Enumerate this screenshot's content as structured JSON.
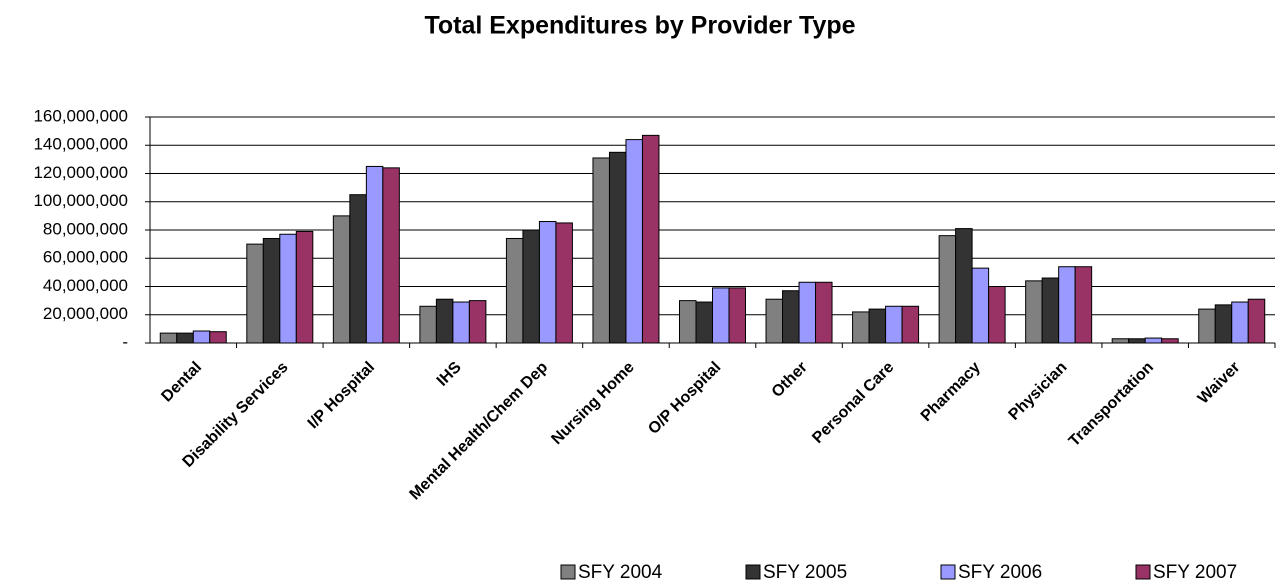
{
  "chart_data": {
    "type": "bar",
    "title": "Total Expenditures by Provider Type",
    "categories": [
      "Dental",
      "Disability Services",
      "I/P Hospital",
      "IHS",
      "Mental Health/Chem Dep",
      "Nursing Home",
      "O/P Hospital",
      "Other",
      "Personal Care",
      "Pharmacy",
      "Physician",
      "Transportation",
      "Waiver"
    ],
    "series": [
      {
        "name": "SFY 2004",
        "color": "#808080",
        "values": [
          7000000,
          70000000,
          90000000,
          26000000,
          74000000,
          131000000,
          30000000,
          31000000,
          22000000,
          76000000,
          44000000,
          3000000,
          24000000
        ]
      },
      {
        "name": "SFY 2005",
        "color": "#333333",
        "values": [
          7000000,
          74000000,
          105000000,
          31000000,
          80000000,
          135000000,
          29000000,
          37000000,
          24000000,
          81000000,
          46000000,
          3000000,
          27000000
        ]
      },
      {
        "name": "SFY 2006",
        "color": "#9999ff",
        "values": [
          8500000,
          77000000,
          125000000,
          29000000,
          86000000,
          144000000,
          39000000,
          43000000,
          26000000,
          53000000,
          54000000,
          3500000,
          29000000
        ]
      },
      {
        "name": "SFY 2007",
        "color": "#993366",
        "values": [
          8000000,
          79000000,
          124000000,
          30000000,
          85000000,
          147000000,
          39000000,
          43000000,
          26000000,
          40000000,
          54000000,
          3000000,
          31000000
        ]
      }
    ],
    "ylim": [
      0,
      160000000
    ],
    "yticks": [
      {
        "value": 0,
        "label": "-"
      },
      {
        "value": 20000000,
        "label": "20,000,000"
      },
      {
        "value": 40000000,
        "label": "40,000,000"
      },
      {
        "value": 60000000,
        "label": "60,000,000"
      },
      {
        "value": 80000000,
        "label": "80,000,000"
      },
      {
        "value": 100000000,
        "label": "100,000,000"
      },
      {
        "value": 120000000,
        "label": "120,000,000"
      },
      {
        "value": 140000000,
        "label": "140,000,000"
      },
      {
        "value": 160000000,
        "label": "160,000,000"
      }
    ],
    "grid": true,
    "legend": "bottom"
  }
}
